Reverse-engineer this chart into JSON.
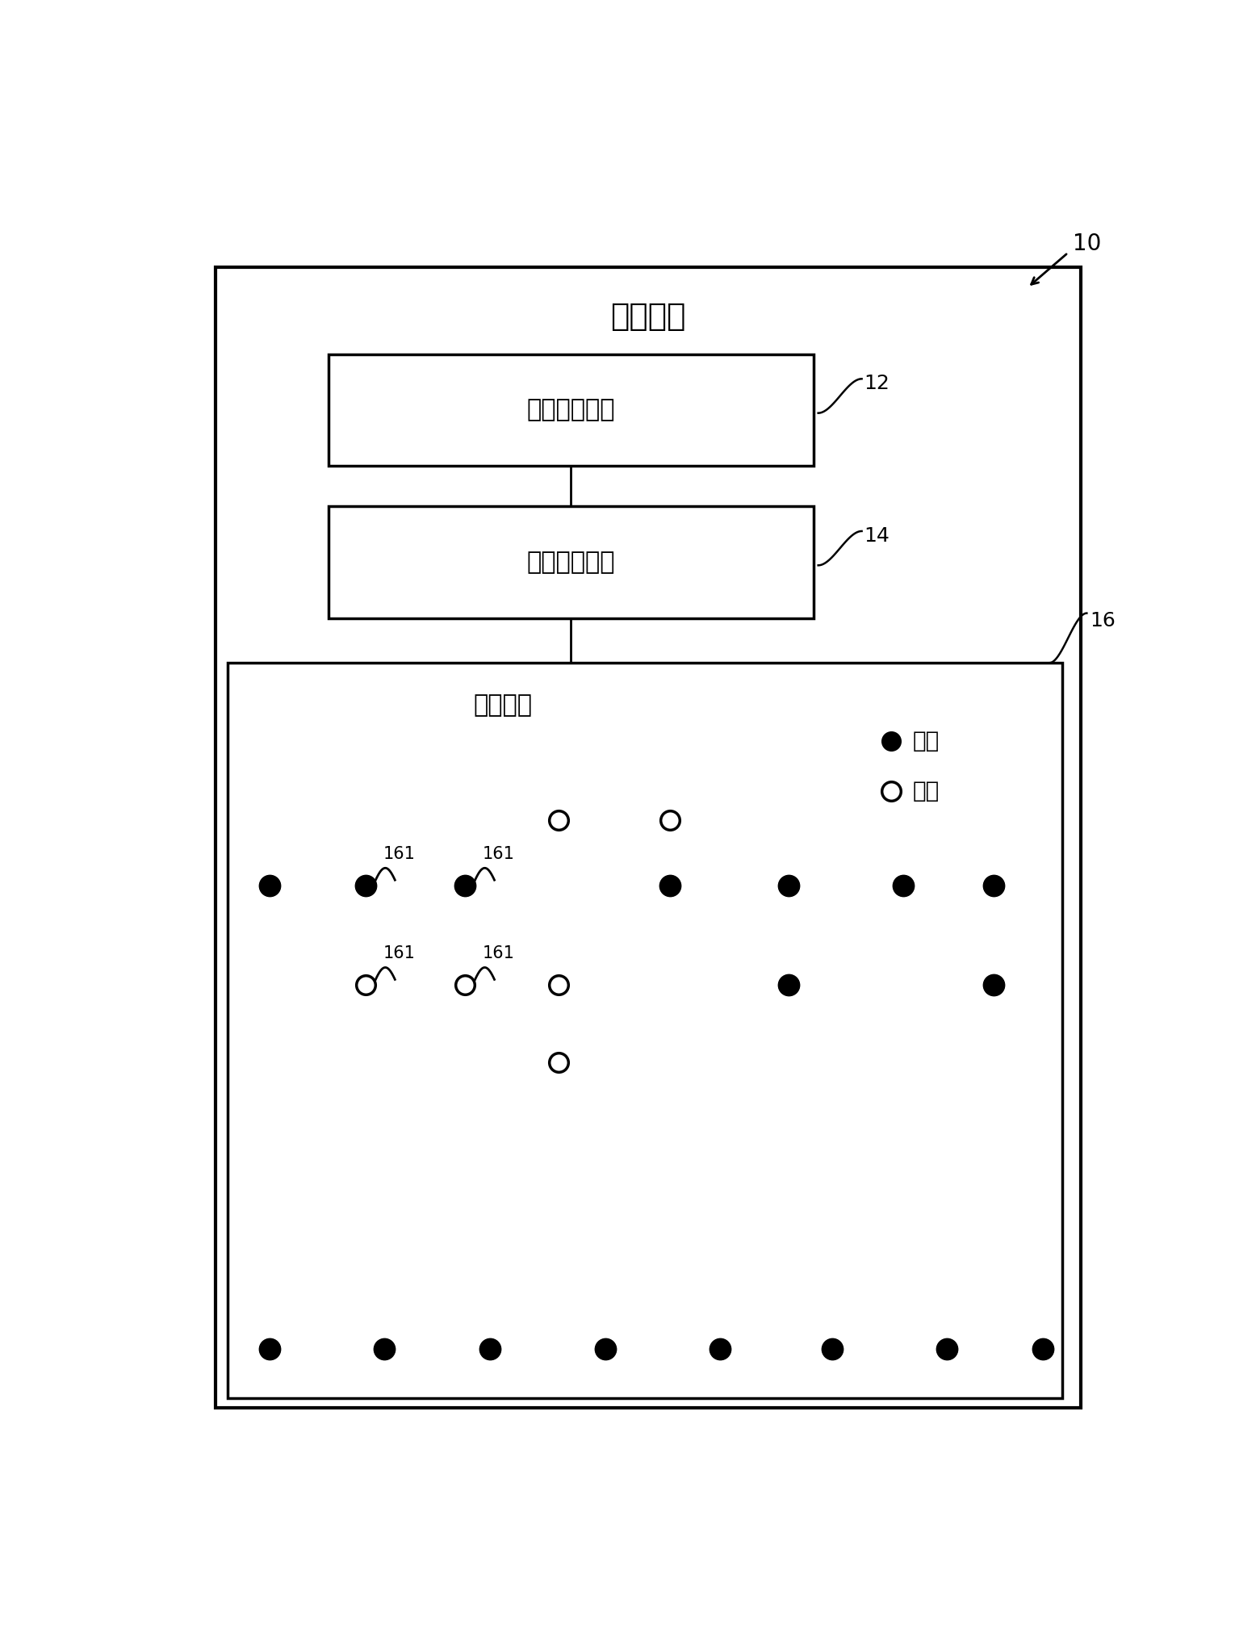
{
  "title_main": "指示装置",
  "box1_label": "信号采集模块",
  "box1_ref": "12",
  "box2_label": "数据处理模块",
  "box2_ref": "14",
  "box3_label": "显示模块",
  "box3_ref": "16",
  "legend_on": "通路",
  "legend_off": "断路",
  "ref_main": "10",
  "label_161": "161",
  "background": "#ffffff",
  "box_color": "#000000",
  "text_color": "#000000",
  "font_size_title": 28,
  "font_size_box": 22,
  "font_size_ref": 18,
  "font_size_label": 15,
  "font_size_legend": 20
}
